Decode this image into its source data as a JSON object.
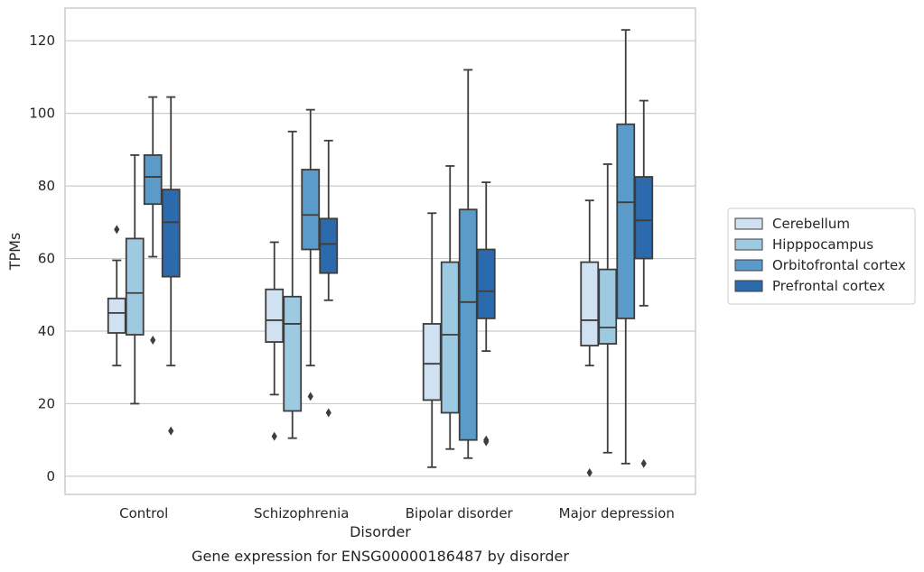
{
  "chart_data": {
    "type": "box",
    "title": "",
    "caption": "Gene expression for ENSG00000186487 by disorder",
    "xlabel": "Disorder",
    "ylabel": "TPMs",
    "categories": [
      "Control",
      "Schizophrenia",
      "Bipolar disorder",
      "Major depression"
    ],
    "ylim": [
      -5,
      129
    ],
    "yticks": [
      0,
      20,
      40,
      60,
      80,
      100,
      120
    ],
    "grid": true,
    "legend_position": "right",
    "series": [
      {
        "name": "Cerebellum",
        "color": "#d0e1f2",
        "boxes": [
          {
            "whisker_low": 30.5,
            "q1": 39.5,
            "median": 45,
            "q3": 49,
            "whisker_high": 59.5,
            "outliers": [
              68
            ]
          },
          {
            "whisker_low": 22.5,
            "q1": 37,
            "median": 43,
            "q3": 51.5,
            "whisker_high": 64.5,
            "outliers": [
              11
            ]
          },
          {
            "whisker_low": 2.5,
            "q1": 21,
            "median": 31,
            "q3": 42,
            "whisker_high": 72.5,
            "outliers": []
          },
          {
            "whisker_low": 30.5,
            "q1": 36,
            "median": 43,
            "q3": 59,
            "whisker_high": 76,
            "outliers": [
              1
            ]
          }
        ]
      },
      {
        "name": "Hipppocampus",
        "color": "#9ecae1",
        "boxes": [
          {
            "whisker_low": 20,
            "q1": 39,
            "median": 50.5,
            "q3": 65.5,
            "whisker_high": 88.5,
            "outliers": []
          },
          {
            "whisker_low": 10.5,
            "q1": 18,
            "median": 42,
            "q3": 49.5,
            "whisker_high": 95,
            "outliers": []
          },
          {
            "whisker_low": 7.5,
            "q1": 17.5,
            "median": 39,
            "q3": 59,
            "whisker_high": 85.5,
            "outliers": []
          },
          {
            "whisker_low": 6.5,
            "q1": 36.5,
            "median": 41,
            "q3": 57,
            "whisker_high": 86,
            "outliers": []
          }
        ]
      },
      {
        "name": "Orbitofrontal cortex",
        "color": "#5a9bc9",
        "boxes": [
          {
            "whisker_low": 60.5,
            "q1": 75,
            "median": 82.5,
            "q3": 88.5,
            "whisker_high": 104.5,
            "outliers": [
              37.5
            ]
          },
          {
            "whisker_low": 30.5,
            "q1": 62.5,
            "median": 72,
            "q3": 84.5,
            "whisker_high": 101,
            "outliers": [
              22
            ]
          },
          {
            "whisker_low": 5,
            "q1": 10,
            "median": 48,
            "q3": 73.5,
            "whisker_high": 112,
            "outliers": []
          },
          {
            "whisker_low": 3.5,
            "q1": 43.5,
            "median": 75.5,
            "q3": 97,
            "whisker_high": 123,
            "outliers": []
          }
        ]
      },
      {
        "name": "Prefrontal cortex",
        "color": "#2b6aad",
        "boxes": [
          {
            "whisker_low": 30.5,
            "q1": 55,
            "median": 70,
            "q3": 79,
            "whisker_high": 104.5,
            "outliers": [
              12.5
            ]
          },
          {
            "whisker_low": 48.5,
            "q1": 56,
            "median": 64,
            "q3": 71,
            "whisker_high": 92.5,
            "outliers": [
              17.5
            ]
          },
          {
            "whisker_low": 34.5,
            "q1": 43.5,
            "median": 51,
            "q3": 62.5,
            "whisker_high": 81,
            "outliers": [
              9.5,
              10
            ]
          },
          {
            "whisker_low": 47,
            "q1": 60,
            "median": 70.5,
            "q3": 82.5,
            "whisker_high": 103.5,
            "outliers": [
              3.5
            ]
          }
        ]
      }
    ]
  }
}
